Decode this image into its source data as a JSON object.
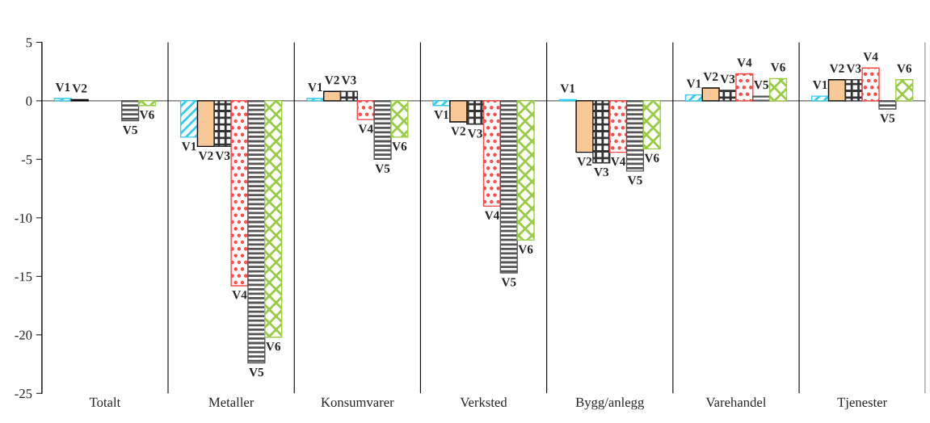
{
  "chart_data": {
    "type": "bar",
    "categories": [
      "Totalt",
      "Metaller",
      "Konsumvarer",
      "Verksted",
      "Bygg/anlegg",
      "Varehandel",
      "Tjenester"
    ],
    "series": [
      {
        "name": "V1",
        "color": "#33ccee",
        "values": [
          0.2,
          -3.1,
          0.2,
          -0.4,
          0.1,
          0.5,
          0.4
        ]
      },
      {
        "name": "V2",
        "color": "#f8c896",
        "values": [
          0.1,
          -3.9,
          0.8,
          -1.8,
          -4.4,
          1.1,
          1.8
        ]
      },
      {
        "name": "V3",
        "color": "#333333",
        "values": [
          null,
          -3.9,
          0.8,
          -2.0,
          -5.3,
          0.9,
          1.8
        ]
      },
      {
        "name": "V4",
        "color": "#ff4444",
        "values": [
          null,
          -15.8,
          -1.6,
          -9.0,
          -4.4,
          2.3,
          2.8
        ]
      },
      {
        "name": "V5",
        "color": "#555555",
        "values": [
          -1.7,
          -22.4,
          -5.0,
          -14.7,
          -6.0,
          0.4,
          -0.7
        ]
      },
      {
        "name": "V6",
        "color": "#99cc44",
        "values": [
          -0.4,
          -20.2,
          -3.1,
          -11.9,
          -4.1,
          1.9,
          1.8
        ]
      }
    ],
    "ylim": [
      -25,
      5
    ],
    "yticks": [
      -25,
      -20,
      -15,
      -10,
      -5,
      0,
      5
    ],
    "grid": "x",
    "legend": false
  }
}
